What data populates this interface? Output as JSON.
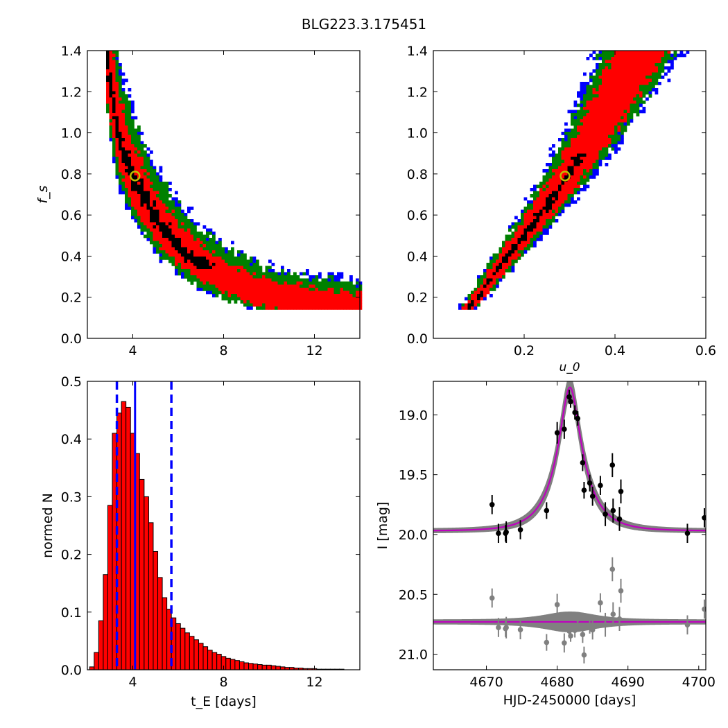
{
  "figure": {
    "title": "BLG223.3.175451"
  },
  "chart_data": [
    {
      "type": "heatmap",
      "panel": "top-left",
      "xlabel": "",
      "ylabel": "f_s",
      "xlim": [
        2,
        14
      ],
      "ylim": [
        0,
        1.4
      ],
      "xticks": [
        4,
        8,
        12
      ],
      "xtick_labels": [
        "4",
        "8",
        "12"
      ],
      "yticks": [
        0.0,
        0.2,
        0.4,
        0.6,
        0.8,
        1.0,
        1.2,
        1.4
      ],
      "ytick_labels": [
        "0.0",
        "0.2",
        "0.4",
        "0.6",
        "0.8",
        "1.0",
        "1.2",
        "1.4"
      ],
      "levels": [
        {
          "level": "outer",
          "color": "#0000ff"
        },
        {
          "level": "2-sigma",
          "color": "#008000"
        },
        {
          "level": "1-sigma",
          "color": "#ff0000"
        },
        {
          "level": "peak",
          "color": "#000000"
        }
      ],
      "best_fit": {
        "x": 4.1,
        "y": 0.79,
        "color": "#bfbf00"
      },
      "curve_fs_vs_tE": [
        [
          2.8,
          1.4
        ],
        [
          3.0,
          1.2
        ],
        [
          3.3,
          1.0
        ],
        [
          3.7,
          0.85
        ],
        [
          4.1,
          0.75
        ],
        [
          4.6,
          0.65
        ],
        [
          5.2,
          0.55
        ],
        [
          6.0,
          0.45
        ],
        [
          7.0,
          0.36
        ],
        [
          8.0,
          0.3
        ],
        [
          9.0,
          0.25
        ],
        [
          10.0,
          0.21
        ],
        [
          12.0,
          0.18
        ],
        [
          14.0,
          0.16
        ]
      ]
    },
    {
      "type": "heatmap",
      "panel": "top-right",
      "xlabel": "u_0",
      "ylabel": "",
      "xlim": [
        0,
        0.6
      ],
      "ylim": [
        0,
        1.4
      ],
      "xticks": [
        0.2,
        0.4,
        0.6
      ],
      "xtick_labels": [
        "0.2",
        "0.4",
        "0.6"
      ],
      "yticks": [
        0.0,
        0.2,
        0.4,
        0.6,
        0.8,
        1.0,
        1.2,
        1.4
      ],
      "ytick_labels": [
        "0.0",
        "0.2",
        "0.4",
        "0.6",
        "0.8",
        "1.0",
        "1.2",
        "1.4"
      ],
      "best_fit": {
        "x": 0.29,
        "y": 0.79,
        "color": "#bfbf00"
      },
      "curve_fs_vs_u0": [
        [
          0.07,
          0.15
        ],
        [
          0.1,
          0.22
        ],
        [
          0.15,
          0.38
        ],
        [
          0.2,
          0.52
        ],
        [
          0.25,
          0.66
        ],
        [
          0.3,
          0.82
        ],
        [
          0.35,
          1.0
        ],
        [
          0.4,
          1.2
        ],
        [
          0.45,
          1.4
        ]
      ]
    },
    {
      "type": "bar",
      "panel": "bottom-left",
      "xlabel": "t_E [days]",
      "ylabel": "normed N",
      "xlim": [
        2,
        14
      ],
      "ylim": [
        0,
        0.5
      ],
      "xticks": [
        4,
        8,
        12
      ],
      "xtick_labels": [
        "4",
        "8",
        "12"
      ],
      "yticks": [
        0.0,
        0.1,
        0.2,
        0.3,
        0.4,
        0.5
      ],
      "ytick_labels": [
        "0.0",
        "0.1",
        "0.2",
        "0.3",
        "0.4",
        "0.5"
      ],
      "bin_start": 2.1,
      "bin_width": 0.2,
      "values": [
        0.005,
        0.03,
        0.085,
        0.165,
        0.285,
        0.41,
        0.445,
        0.465,
        0.455,
        0.41,
        0.375,
        0.33,
        0.3,
        0.255,
        0.205,
        0.16,
        0.125,
        0.105,
        0.09,
        0.08,
        0.072,
        0.064,
        0.058,
        0.052,
        0.046,
        0.04,
        0.034,
        0.03,
        0.027,
        0.023,
        0.02,
        0.018,
        0.016,
        0.014,
        0.012,
        0.011,
        0.01,
        0.009,
        0.008,
        0.008,
        0.007,
        0.006,
        0.005,
        0.004,
        0.004,
        0.003,
        0.003,
        0.002,
        0.002,
        0.002,
        0.001,
        0.001,
        0.001,
        0.001,
        0.001,
        0.001,
        0.0,
        0.0,
        0.0
      ],
      "bar_color": "#ff0000",
      "median_line": 4.1,
      "dashed_lines": [
        3.3,
        5.7
      ],
      "line_color": "#0000ff"
    },
    {
      "type": "scatter",
      "panel": "bottom-right",
      "xlabel": "HJD-2450000 [days]",
      "ylabel": "I [mag]",
      "xlim": [
        4662.5,
        4701
      ],
      "ylim": [
        21.13,
        18.72
      ],
      "xticks": [
        4670,
        4680,
        4690,
        4700
      ],
      "xtick_labels": [
        "4670",
        "4680",
        "4690",
        "4700"
      ],
      "yticks": [
        19.0,
        19.5,
        20.0,
        20.5,
        21.0
      ],
      "ytick_labels": [
        "19.0",
        "19.5",
        "20.0",
        "20.5",
        "21.0"
      ],
      "model": {
        "t0": 4681.8,
        "tE": 4.1,
        "u0": 0.29,
        "fs": 0.79,
        "baseline": 19.97,
        "color": "#bf00bf",
        "band_color": "#808080"
      },
      "residual_offset": 20.73,
      "data": [
        {
          "t": 4670.8,
          "mag": 19.75,
          "err": 0.08
        },
        {
          "t": 4671.7,
          "mag": 19.99,
          "err": 0.08
        },
        {
          "t": 4672.7,
          "mag": 19.99,
          "err": 0.07
        },
        {
          "t": 4672.8,
          "mag": 19.98,
          "err": 0.09
        },
        {
          "t": 4674.8,
          "mag": 19.96,
          "err": 0.08
        },
        {
          "t": 4678.5,
          "mag": 19.8,
          "err": 0.07
        },
        {
          "t": 4680.0,
          "mag": 19.15,
          "err": 0.09
        },
        {
          "t": 4681.0,
          "mag": 19.12,
          "err": 0.08
        },
        {
          "t": 4681.7,
          "mag": 18.85,
          "err": 0.06
        },
        {
          "t": 4681.9,
          "mag": 18.89,
          "err": 0.05
        },
        {
          "t": 4682.5,
          "mag": 18.98,
          "err": 0.06
        },
        {
          "t": 4682.9,
          "mag": 19.03,
          "err": 0.06
        },
        {
          "t": 4683.6,
          "mag": 19.4,
          "err": 0.07
        },
        {
          "t": 4683.8,
          "mag": 19.63,
          "err": 0.07
        },
        {
          "t": 4684.6,
          "mag": 19.57,
          "err": 0.07
        },
        {
          "t": 4685.0,
          "mag": 19.68,
          "err": 0.08
        },
        {
          "t": 4686.1,
          "mag": 19.59,
          "err": 0.08
        },
        {
          "t": 4686.8,
          "mag": 19.83,
          "err": 0.1
        },
        {
          "t": 4687.8,
          "mag": 19.42,
          "err": 0.1
        },
        {
          "t": 4687.9,
          "mag": 19.8,
          "err": 0.1
        },
        {
          "t": 4688.8,
          "mag": 19.87,
          "err": 0.1
        },
        {
          "t": 4689.0,
          "mag": 19.64,
          "err": 0.1
        },
        {
          "t": 4698.4,
          "mag": 19.99,
          "err": 0.08
        },
        {
          "t": 4700.8,
          "mag": 19.86,
          "err": 0.08
        }
      ],
      "residual_color": "#808080"
    }
  ]
}
